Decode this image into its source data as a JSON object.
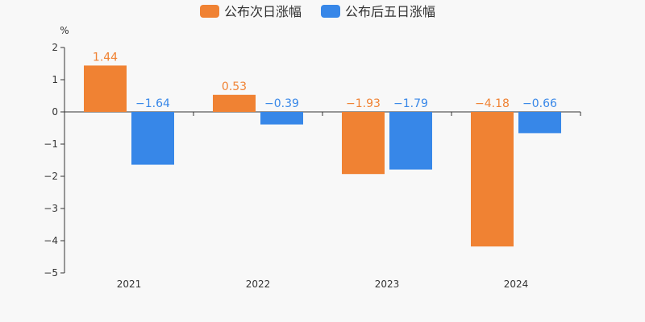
{
  "chart_data": {
    "type": "bar",
    "unit": "%",
    "categories": [
      "2021",
      "2022",
      "2023",
      "2024"
    ],
    "series": [
      {
        "name": "公布次日涨幅",
        "color": "#f08233",
        "values": [
          1.44,
          0.53,
          -1.93,
          -4.18
        ],
        "labels": [
          "1.44",
          "0.53",
          "−1.93",
          "−4.18"
        ]
      },
      {
        "name": "公布后五日涨幅",
        "color": "#3787e8",
        "values": [
          -1.64,
          -0.39,
          -1.79,
          -0.66
        ],
        "labels": [
          "−1.64",
          "−0.39",
          "−1.79",
          "−0.66"
        ]
      }
    ],
    "ylim": [
      -5,
      2
    ],
    "yticks": [
      2,
      1,
      0,
      -1,
      -2,
      -3,
      -4,
      -5
    ],
    "ytick_labels": [
      "2",
      "1",
      "0",
      "−1",
      "−2",
      "−3",
      "−4",
      "−5"
    ],
    "grid": false,
    "legend_position": "top-center"
  }
}
